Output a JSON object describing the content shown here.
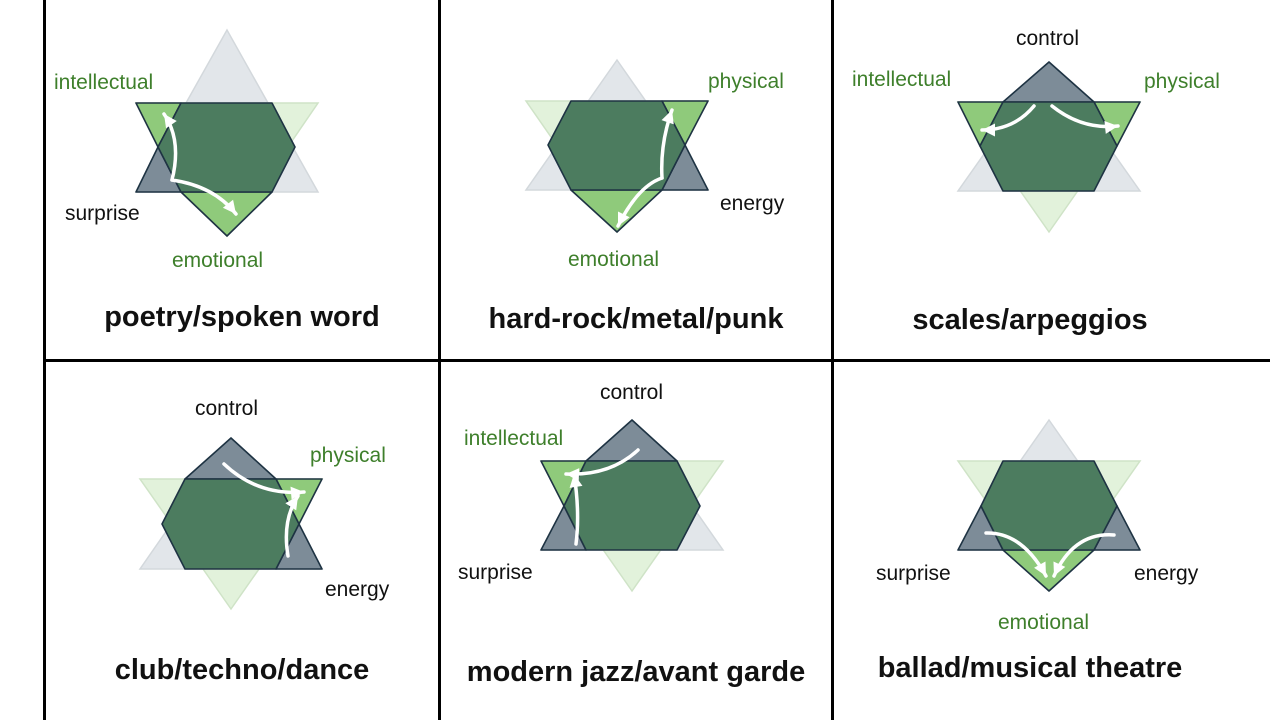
{
  "colors": {
    "green_light": "#e2f2db",
    "green_bright": "#8fca7b",
    "slate": "#7d8c98",
    "gray_light": "#e2e6ea",
    "center": "#4c7c5f",
    "outline_dark": "#1e3343",
    "arrow": "#ffffff",
    "label_green": "#3e7f2b",
    "label_black": "#111111"
  },
  "panels": [
    {
      "title": "poetry/spoken word",
      "labels": {
        "intellectual": "intellectual",
        "surprise": "surprise",
        "emotional": "emotional"
      },
      "highlight": [
        "intellectual",
        "surprise",
        "emotional"
      ],
      "arrows": [
        "surprise→intellectual",
        "surprise→emotional"
      ]
    },
    {
      "title": "hard-rock/metal/punk",
      "labels": {
        "physical": "physical",
        "energy": "energy",
        "emotional": "emotional"
      },
      "highlight": [
        "physical",
        "energy",
        "emotional"
      ],
      "arrows": [
        "energy→physical",
        "energy→emotional"
      ]
    },
    {
      "title": "scales/arpeggios",
      "labels": {
        "control": "control",
        "intellectual": "intellectual",
        "physical": "physical"
      },
      "highlight": [
        "control",
        "intellectual",
        "physical"
      ],
      "arrows": [
        "control→intellectual",
        "control→physical"
      ]
    },
    {
      "title": "club/techno/dance",
      "labels": {
        "control": "control",
        "physical": "physical",
        "energy": "energy"
      },
      "highlight": [
        "control",
        "physical",
        "energy"
      ],
      "arrows": [
        "control→physical",
        "energy→physical"
      ]
    },
    {
      "title": "modern jazz/avant garde",
      "labels": {
        "control": "control",
        "intellectual": "intellectual",
        "surprise": "surprise"
      },
      "highlight": [
        "control",
        "intellectual",
        "surprise"
      ],
      "arrows": [
        "control→intellectual",
        "surprise→intellectual"
      ]
    },
    {
      "title": "ballad/musical theatre",
      "labels": {
        "surprise": "surprise",
        "energy": "energy",
        "emotional": "emotional"
      },
      "highlight": [
        "surprise",
        "energy",
        "emotional"
      ],
      "arrows": [
        "surprise→emotional",
        "energy→emotional"
      ]
    }
  ]
}
